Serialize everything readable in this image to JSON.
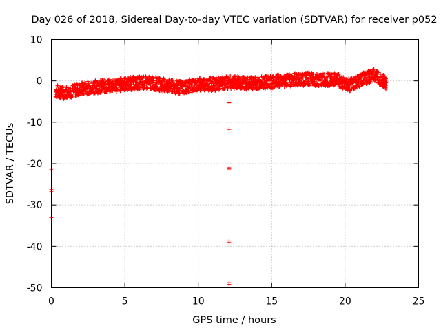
{
  "chart_data": {
    "type": "scatter",
    "title": "Day 026 of 2018, Sidereal Day-to-day VTEC variation (SDTVAR) for receiver p052",
    "xlabel": "GPS time / hours",
    "ylabel": "SDTVAR / TECUs",
    "xlim": [
      0,
      25
    ],
    "ylim": [
      -50,
      10
    ],
    "xticks": [
      0,
      5,
      10,
      15,
      20,
      25
    ],
    "yticks": [
      -50,
      -40,
      -30,
      -20,
      -10,
      0,
      10
    ],
    "grid": true,
    "marker": "plus",
    "series_color": "#ff0000",
    "series": [
      {
        "name": "SDTVAR",
        "band": [
          [
            0.3,
            -2.5
          ],
          [
            0.8,
            -2.8
          ],
          [
            1.5,
            -2.4
          ],
          [
            2.0,
            -1.9
          ],
          [
            2.5,
            -1.6
          ],
          [
            3.0,
            -1.4
          ],
          [
            3.5,
            -1.3
          ],
          [
            4.0,
            -1.2
          ],
          [
            4.5,
            -1.0
          ],
          [
            5.0,
            -0.8
          ],
          [
            5.5,
            -0.6
          ],
          [
            6.0,
            -0.5
          ],
          [
            6.5,
            -0.5
          ],
          [
            7.0,
            -0.6
          ],
          [
            7.5,
            -0.9
          ],
          [
            8.0,
            -1.2
          ],
          [
            8.5,
            -1.6
          ],
          [
            9.0,
            -1.5
          ],
          [
            9.5,
            -1.2
          ],
          [
            10.0,
            -0.9
          ],
          [
            10.5,
            -0.7
          ],
          [
            11.0,
            -0.8
          ],
          [
            11.5,
            -0.7
          ],
          [
            12.0,
            -0.4
          ],
          [
            12.5,
            -0.3
          ],
          [
            13.0,
            -0.5
          ],
          [
            13.5,
            -0.6
          ],
          [
            14.0,
            -0.5
          ],
          [
            14.5,
            -0.3
          ],
          [
            15.0,
            -0.2
          ],
          [
            15.5,
            0.0
          ],
          [
            16.0,
            0.1
          ],
          [
            16.5,
            0.3
          ],
          [
            17.0,
            0.4
          ],
          [
            17.5,
            0.4
          ],
          [
            18.0,
            0.3
          ],
          [
            18.5,
            0.3
          ],
          [
            19.0,
            0.3
          ],
          [
            19.5,
            0.3
          ],
          [
            20.0,
            -0.8
          ],
          [
            20.5,
            -0.9
          ],
          [
            21.0,
            0.0
          ],
          [
            21.5,
            0.8
          ],
          [
            22.0,
            1.5
          ],
          [
            22.5,
            0.4
          ],
          [
            22.8,
            -0.6
          ]
        ],
        "band_thickness": 1.6,
        "outliers": [
          [
            0.0,
            -21.5
          ],
          [
            0.0,
            -26.3
          ],
          [
            0.0,
            -26.8
          ],
          [
            0.0,
            -33.0
          ],
          [
            12.1,
            -5.3
          ],
          [
            12.1,
            -11.7
          ],
          [
            12.1,
            -21.0
          ],
          [
            12.1,
            -21.3
          ],
          [
            12.1,
            -38.7
          ],
          [
            12.1,
            -39.1
          ],
          [
            12.1,
            -48.8
          ],
          [
            12.1,
            -49.2
          ],
          [
            12.3,
            -1.2
          ],
          [
            18.5,
            -0.5
          ],
          [
            19.2,
            -0.3
          ]
        ]
      }
    ]
  }
}
